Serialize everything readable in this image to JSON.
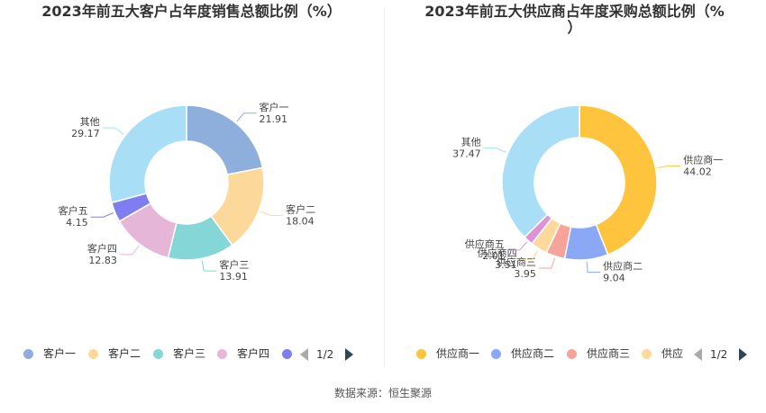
{
  "source": "数据来源：恒生聚源",
  "chart_data": [
    {
      "type": "pie",
      "title": "2023年前五大客户占年度销售总额比例（%）",
      "categories": [
        "客户一",
        "客户二",
        "客户三",
        "客户四",
        "客户五",
        "其他"
      ],
      "values": [
        21.91,
        18.04,
        13.91,
        12.83,
        4.15,
        29.17
      ],
      "colors": [
        "#8eaedb",
        "#fdd89b",
        "#85d7d7",
        "#e6b6d9",
        "#7e7ef0",
        "#a8dff6"
      ],
      "legend": {
        "position": "bottom",
        "items": [
          "客户一",
          "客户二",
          "客户三",
          "客户四",
          ""
        ],
        "page": "1/2"
      }
    },
    {
      "type": "pie",
      "title": "2023年前五大供应商占年度采购总额比例（%）",
      "categories": [
        "供应商一",
        "供应商二",
        "供应商三",
        "供应商四",
        "供应商五",
        "其他"
      ],
      "values": [
        44.02,
        9.04,
        3.95,
        3.51,
        2.01,
        37.47
      ],
      "colors": [
        "#ffc43d",
        "#8aa8f5",
        "#f6a39a",
        "#fdd89b",
        "#dd92d8",
        "#a8dff6"
      ],
      "legend": {
        "position": "bottom",
        "items": [
          "供应商一",
          "供应商二",
          "供应商三",
          "供应"
        ],
        "page": "1/2"
      }
    }
  ]
}
